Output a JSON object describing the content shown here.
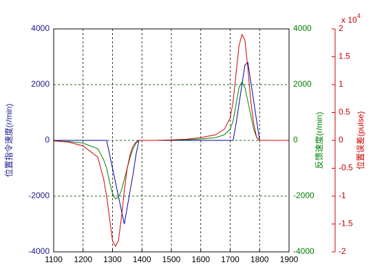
{
  "chart_data": {
    "type": "line",
    "x": [
      1100,
      1150,
      1200,
      1250,
      1270,
      1280,
      1290,
      1300,
      1310,
      1320,
      1330,
      1340,
      1350,
      1360,
      1370,
      1380,
      1390,
      1400,
      1450,
      1500,
      1550,
      1600,
      1650,
      1680,
      1700,
      1710,
      1720,
      1730,
      1740,
      1750,
      1760,
      1770,
      1780,
      1790,
      1800,
      1850,
      1900
    ],
    "xlim": [
      1100,
      1900
    ],
    "xticks": [
      1100,
      1200,
      1300,
      1400,
      1500,
      1600,
      1700,
      1800,
      1900
    ],
    "ylim": [
      -4000,
      4000
    ],
    "yticks": [
      -4000,
      -2000,
      0,
      2000,
      4000
    ],
    "y2lim": [
      -4000,
      4000
    ],
    "y2ticks": [
      -4000,
      -2000,
      0,
      2000,
      4000
    ],
    "y3lim": [
      -2,
      2
    ],
    "y3ticks": [
      -2,
      -1.5,
      -1,
      -0.5,
      0,
      0.5,
      1,
      1.5,
      2
    ],
    "ylabel": "位置指令速度(r/min)",
    "y2label": "反馈速度(r/min)",
    "y3label": "位置误差(pulse)",
    "y3exponent_base": "x 10",
    "y3exponent": "4",
    "grid": true,
    "series": [
      {
        "color": "#0000aa",
        "axis": "y",
        "values": [
          0,
          0,
          0,
          0,
          0,
          0,
          -500,
          -1000,
          -1500,
          -2000,
          -2500,
          -3000,
          -2400,
          -1800,
          -1200,
          -500,
          0,
          0,
          0,
          0,
          0,
          0,
          0,
          0,
          0,
          0,
          600,
          1300,
          2000,
          2700,
          2800,
          2100,
          1400,
          700,
          0,
          0,
          0
        ]
      },
      {
        "color": "#008000",
        "axis": "y2",
        "values": [
          -20,
          -40,
          -100,
          -300,
          -700,
          -1000,
          -1500,
          -1900,
          -2100,
          -2050,
          -1800,
          -1400,
          -1000,
          -600,
          -300,
          -100,
          0,
          0,
          0,
          10,
          20,
          50,
          100,
          200,
          400,
          700,
          1300,
          1900,
          2100,
          1900,
          1400,
          900,
          400,
          100,
          0,
          0,
          0
        ]
      },
      {
        "color": "#cc0000",
        "axis": "y3",
        "values": [
          -0.01,
          -0.03,
          -0.1,
          -0.3,
          -0.7,
          -1.0,
          -1.4,
          -1.8,
          -1.9,
          -1.8,
          -1.4,
          -0.9,
          -0.5,
          -0.25,
          -0.1,
          -0.03,
          0,
          0,
          0,
          0.01,
          0.02,
          0.05,
          0.1,
          0.2,
          0.4,
          0.7,
          1.2,
          1.7,
          1.9,
          1.8,
          1.3,
          0.7,
          0.3,
          0.05,
          0,
          0,
          0
        ]
      }
    ]
  }
}
